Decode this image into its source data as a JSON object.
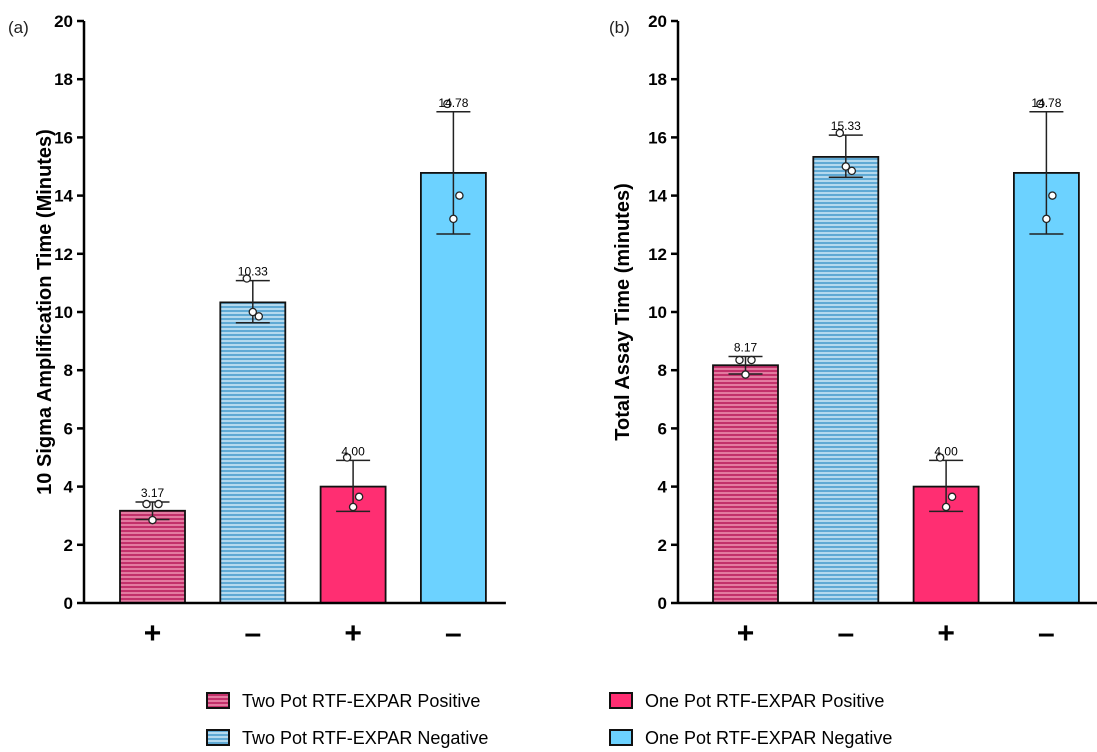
{
  "chart_data": [
    {
      "type": "bar",
      "panel_label": "(a)",
      "ylabel": "10 Sigma Amplification Time (Minutes)",
      "xlabel": "",
      "ylim": [
        0,
        20
      ],
      "yticks": [
        "0",
        "2",
        "4",
        "6",
        "8",
        "10",
        "12",
        "14",
        "16",
        "18",
        "20"
      ],
      "categories": [
        "+",
        "–",
        "+",
        "–"
      ],
      "series_keys": [
        "two_pot_pos",
        "two_pot_neg",
        "one_pot_pos",
        "one_pot_neg"
      ],
      "values": [
        3.17,
        10.33,
        4.0,
        14.78
      ],
      "value_labels": [
        "3.17",
        "10.33",
        "4.00",
        "14.78"
      ],
      "error_plus": [
        0.3,
        0.75,
        0.9,
        2.1
      ],
      "error_minus": [
        0.3,
        0.7,
        0.85,
        2.1
      ],
      "points": [
        [
          3.4,
          3.4,
          2.85
        ],
        [
          11.15,
          9.85,
          10.0
        ],
        [
          5.0,
          3.65,
          3.3
        ],
        [
          17.15,
          14.0,
          13.2
        ]
      ],
      "grid": false
    },
    {
      "type": "bar",
      "panel_label": "(b)",
      "ylabel": "Total Assay Time (minutes)",
      "xlabel": "",
      "ylim": [
        0,
        20
      ],
      "yticks": [
        "0",
        "2",
        "4",
        "6",
        "8",
        "10",
        "12",
        "14",
        "16",
        "18",
        "20"
      ],
      "categories": [
        "+",
        "–",
        "+",
        "–"
      ],
      "series_keys": [
        "two_pot_pos",
        "two_pot_neg",
        "one_pot_pos",
        "one_pot_neg"
      ],
      "values": [
        8.17,
        15.33,
        4.0,
        14.78
      ],
      "value_labels": [
        "8.17",
        "15.33",
        "4.00",
        "14.78"
      ],
      "error_plus": [
        0.3,
        0.75,
        0.9,
        2.1
      ],
      "error_minus": [
        0.3,
        0.7,
        0.85,
        2.1
      ],
      "points": [
        [
          8.35,
          8.35,
          7.85
        ],
        [
          16.15,
          14.85,
          15.0
        ],
        [
          5.0,
          3.65,
          3.3
        ],
        [
          17.15,
          14.0,
          13.2
        ]
      ],
      "grid": false
    }
  ],
  "legend": {
    "placement": "bottom",
    "items": [
      {
        "key": "two_pot_pos",
        "label": "Two Pot RTF-EXPAR Positive",
        "color": "#d6336c",
        "pattern": "horizontal-stripes"
      },
      {
        "key": "one_pot_pos",
        "label": "One Pot RTF-EXPAR Positive",
        "color": "#ff2e72",
        "pattern": "solid"
      },
      {
        "key": "two_pot_neg",
        "label": "Two Pot RTF-EXPAR Negative",
        "color": "#6bb8e0",
        "pattern": "horizontal-stripes"
      },
      {
        "key": "one_pot_neg",
        "label": "One Pot RTF-EXPAR Negative",
        "color": "#6cd2ff",
        "pattern": "solid"
      }
    ]
  }
}
